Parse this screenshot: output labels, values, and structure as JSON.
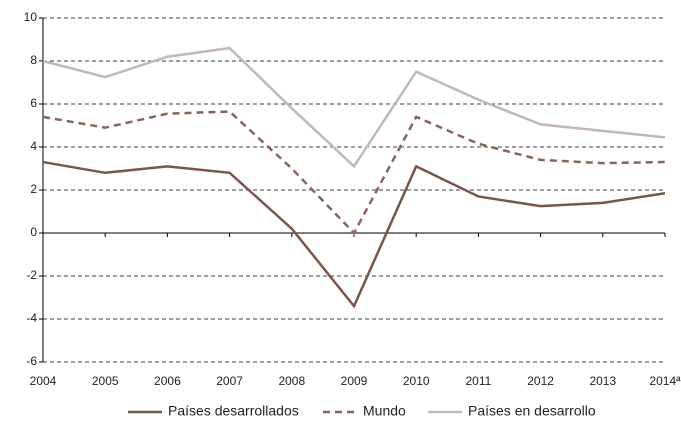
{
  "chart_data": {
    "type": "line",
    "categories": [
      "2004",
      "2005",
      "2006",
      "2007",
      "2008",
      "2009",
      "2010",
      "2011",
      "2012",
      "2013",
      "2014ª"
    ],
    "series": [
      {
        "name": "Países desarrollados",
        "color": "#7a5548",
        "dash": false,
        "values": [
          3.3,
          2.8,
          3.1,
          2.8,
          0.2,
          -3.4,
          3.1,
          1.7,
          1.25,
          1.4,
          1.85
        ]
      },
      {
        "name": "Mundo",
        "color": "#8b6358",
        "dash": true,
        "values": [
          5.4,
          4.9,
          5.55,
          5.65,
          3.0,
          0.0,
          5.4,
          4.15,
          3.4,
          3.25,
          3.3
        ]
      },
      {
        "name": "Países en desarrollo",
        "color": "#c4b8b0",
        "dash": false,
        "values": [
          8.0,
          7.25,
          8.2,
          8.6,
          5.8,
          3.1,
          7.5,
          6.2,
          5.05,
          4.75,
          4.45
        ]
      }
    ],
    "ylim": [
      -6,
      10
    ],
    "yticks": [
      -6,
      -4,
      -2,
      0,
      2,
      4,
      6,
      8,
      10
    ],
    "grid": true,
    "legend": "bottom"
  }
}
